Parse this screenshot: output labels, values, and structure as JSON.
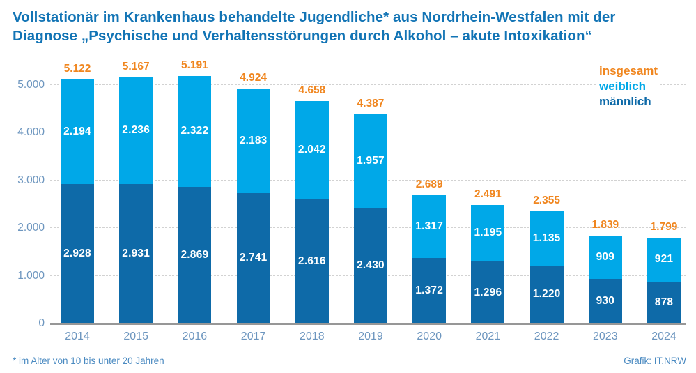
{
  "title": {
    "line1": "Vollstationär im Krankenhaus behandelte Jugendliche* aus Nordrhein-Westfalen mit der",
    "line2": "Diagnose „Psychische und Verhaltensstörungen durch Alkohol – akute Intoxikation“"
  },
  "legend": [
    {
      "label": "insgesamt",
      "color": "#f0861f"
    },
    {
      "label": "weiblich",
      "color": "#00a8e8"
    },
    {
      "label": "männlich",
      "color": "#0e6aa8"
    }
  ],
  "footnote": "* im Alter von 10 bis unter 20 Jahren",
  "credit": "Grafik: IT.NRW",
  "colors": {
    "title_blue": "#1274b5",
    "male_dark_blue": "#0e6aa8",
    "female_light_blue": "#00a8e8",
    "total_orange": "#f0861f",
    "axis_label_blue": "#6d96bf",
    "gridline_gray": "#d2d2d2",
    "baseline_gray": "#979797"
  },
  "chart_data": {
    "type": "bar",
    "stacked": true,
    "title": "Vollstationär im Krankenhaus behandelte Jugendliche* aus Nordrhein-Westfalen mit der Diagnose „Psychische und Verhaltensstörungen durch Alkohol – akute Intoxikation“",
    "categories": [
      "2014",
      "2015",
      "2016",
      "2017",
      "2018",
      "2019",
      "2020",
      "2021",
      "2022",
      "2023",
      "2024"
    ],
    "series": [
      {
        "name": "männlich",
        "color": "#0e6aa8",
        "values": [
          2928,
          2931,
          2869,
          2741,
          2616,
          2430,
          1372,
          1296,
          1220,
          930,
          878
        ],
        "labels": [
          "2.928",
          "2.931",
          "2.869",
          "2.741",
          "2.616",
          "2.430",
          "1.372",
          "1.296",
          "1.220",
          "930",
          "878"
        ]
      },
      {
        "name": "weiblich",
        "color": "#00a8e8",
        "values": [
          2194,
          2236,
          2322,
          2183,
          2042,
          1957,
          1317,
          1195,
          1135,
          909,
          921
        ],
        "labels": [
          "2.194",
          "2.236",
          "2.322",
          "2.183",
          "2.042",
          "1.957",
          "1.317",
          "1.195",
          "1.135",
          "909",
          "921"
        ]
      }
    ],
    "totals": {
      "name": "insgesamt",
      "color": "#f0861f",
      "values": [
        5122,
        5167,
        5191,
        4924,
        4658,
        4387,
        2689,
        2491,
        2355,
        1839,
        1799
      ],
      "labels": [
        "5.122",
        "5.167",
        "5.191",
        "4.924",
        "4.658",
        "4.387",
        "2.689",
        "2.491",
        "2.355",
        "1.839",
        "1.799"
      ]
    },
    "ylim": [
      0,
      5000
    ],
    "yticks": [
      0,
      1000,
      2000,
      3000,
      4000,
      5000
    ],
    "ytick_labels": [
      "0",
      "1.000",
      "2.000",
      "3.000",
      "4.000",
      "5.000"
    ],
    "grid": "horizontal-dashed",
    "legend_position": "top-right",
    "xlabel": "",
    "ylabel": ""
  }
}
